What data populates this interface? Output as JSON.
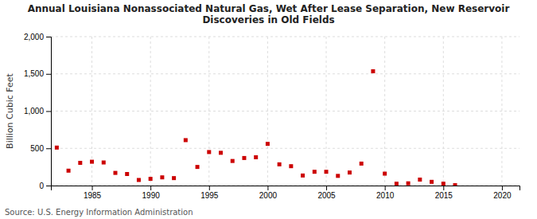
{
  "chart_data": {
    "type": "scatter",
    "title": "Annual Louisiana Nonassociated Natural Gas, Wet After Lease Separation, New Reservoir\nDiscoveries in Old Fields",
    "ylabel": "Billion Cubic Feet",
    "source": "Source: U.S. Energy Information Administration",
    "color": "#cc0000",
    "marker": "square",
    "grid": true,
    "xlim": [
      1981.5,
      2021.5
    ],
    "ylim": [
      0,
      2000
    ],
    "xticks": [
      1985,
      1990,
      1995,
      2000,
      2005,
      2010,
      2015,
      2020
    ],
    "yticks": [
      0,
      500,
      {
        "value": 1000,
        "label": "1,000"
      },
      {
        "value": 1500,
        "label": "1,500"
      },
      {
        "value": 2000,
        "label": "2,000"
      }
    ],
    "x": [
      1982,
      1983,
      1984,
      1985,
      1986,
      1987,
      1988,
      1989,
      1990,
      1991,
      1992,
      1993,
      1994,
      1995,
      1996,
      1997,
      1998,
      1999,
      2000,
      2001,
      2002,
      2003,
      2004,
      2005,
      2006,
      2007,
      2008,
      2009,
      2010,
      2011,
      2012,
      2013,
      2014,
      2015,
      2016
    ],
    "values": [
      510,
      200,
      305,
      320,
      310,
      170,
      155,
      75,
      90,
      110,
      100,
      610,
      250,
      450,
      440,
      330,
      370,
      380,
      560,
      285,
      260,
      135,
      185,
      185,
      130,
      175,
      295,
      1535,
      160,
      25,
      30,
      80,
      50,
      25,
      5
    ]
  }
}
